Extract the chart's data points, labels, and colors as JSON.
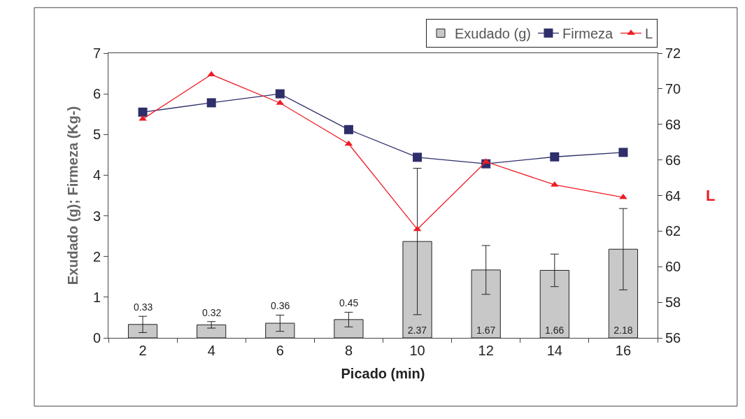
{
  "chart_data": {
    "type": "bar",
    "xlabel": "Picado (min)",
    "ylabel": "Exudado (g); Firmeza (Kg-)",
    "y2label": "L",
    "categories": [
      "2",
      "4",
      "6",
      "8",
      "10",
      "12",
      "14",
      "16"
    ],
    "series": [
      {
        "name": "Exudado (g)",
        "color": "#c8c8c8",
        "values": [
          0.33,
          0.32,
          0.36,
          0.45,
          2.37,
          1.67,
          1.66,
          2.18
        ],
        "errors": [
          0.2,
          0.08,
          0.2,
          0.18,
          1.8,
          0.6,
          0.4,
          1.0
        ],
        "data_labels": true
      },
      {
        "name": "Firmeza",
        "type": "line",
        "color": "#2e2e6a",
        "marker": "square",
        "values": [
          5.55,
          5.78,
          6.0,
          5.12,
          4.44,
          4.28,
          4.45,
          4.56
        ]
      },
      {
        "name": "L",
        "type": "line",
        "color": "#ee1c25",
        "marker": "triangle",
        "axis": "y2",
        "values": [
          68.3,
          70.8,
          69.2,
          66.9,
          62.1,
          65.9,
          64.6,
          63.9
        ]
      }
    ],
    "ylim": [
      0,
      7
    ],
    "yticks": [
      0,
      1,
      2,
      3,
      4,
      5,
      6,
      7
    ],
    "y2lim": [
      56,
      72
    ],
    "y2ticks": [
      56,
      58,
      60,
      62,
      64,
      66,
      68,
      70,
      72
    ],
    "legend": "top right"
  }
}
